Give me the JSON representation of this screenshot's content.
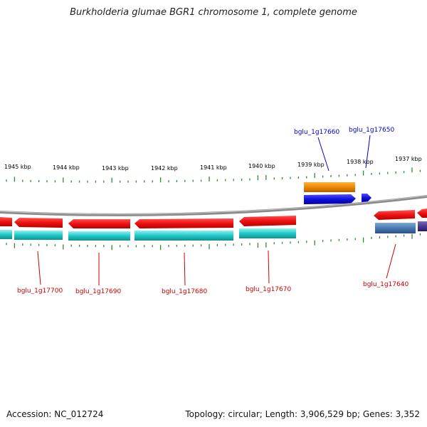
{
  "title": "Burkholderia glumae BGR1 chromosome 1, complete genome",
  "footer": {
    "accession": "Accession: NC_012724",
    "summary": "Topology: circular; Length: 3,906,529 bp; Genes: 3,352"
  },
  "ruler": {
    "ticks": [
      "1945 kbp",
      "1944 kbp",
      "1943 kbp",
      "1942 kbp",
      "1941 kbp",
      "1940 kbp",
      "1939 kbp",
      "1938 kbp",
      "1937 kbp"
    ]
  },
  "genes_forward": [
    {
      "id": "bglu_1g17660",
      "label_color": "#0000cc"
    },
    {
      "id": "bglu_1g17650",
      "label_color": "#0000cc"
    }
  ],
  "genes_reverse": [
    {
      "id": "bglu_1g17700",
      "label_color": "#cc0000"
    },
    {
      "id": "bglu_1g17690",
      "label_color": "#cc0000"
    },
    {
      "id": "bglu_1g17680",
      "label_color": "#cc0000"
    },
    {
      "id": "bglu_1g17670",
      "label_color": "#cc0000"
    },
    {
      "id": "bglu_1g17640",
      "label_color": "#cc0000"
    }
  ],
  "colors": {
    "backbone": "#8a8a8a",
    "tick": "#2e8b2e",
    "cds_reverse": "#ee1111",
    "gene_reverse": "#20c8c8",
    "cds_forward": "#1010dd",
    "gene_forward": "#ee8800",
    "gene_steelblue": "#4a7ab0",
    "gene_purple": "#4a3a90"
  }
}
